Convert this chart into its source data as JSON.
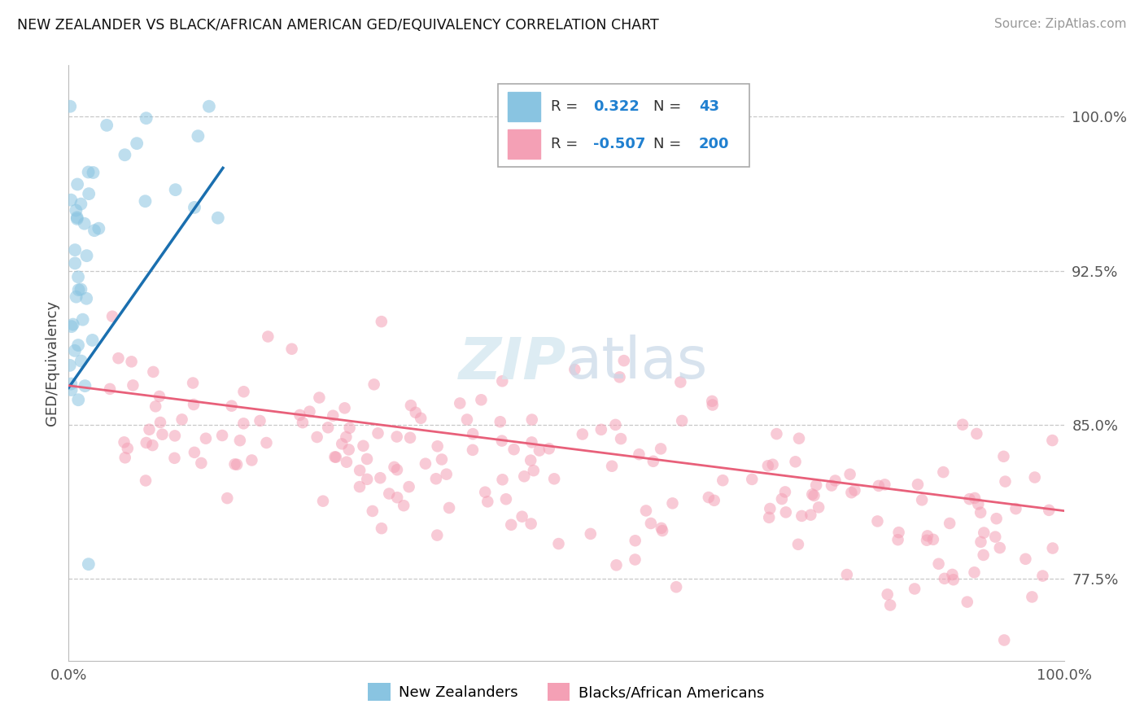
{
  "title": "NEW ZEALANDER VS BLACK/AFRICAN AMERICAN GED/EQUIVALENCY CORRELATION CHART",
  "source": "Source: ZipAtlas.com",
  "ylabel": "GED/Equivalency",
  "legend_entry1": "New Zealanders",
  "legend_entry2": "Blacks/African Americans",
  "r1": 0.322,
  "n1": 43,
  "r2": -0.507,
  "n2": 200,
  "color_blue": "#89c4e1",
  "color_pink": "#f4a0b5",
  "color_blue_line": "#1a6faf",
  "color_pink_line": "#e8607a",
  "xlim": [
    0.0,
    1.0
  ],
  "ylim": [
    0.735,
    1.025
  ],
  "yticks": [
    0.775,
    0.85,
    0.925,
    1.0
  ],
  "ytick_labels": [
    "77.5%",
    "85.0%",
    "92.5%",
    "100.0%"
  ],
  "xtick_labels": [
    "0.0%",
    "100.0%"
  ],
  "xticks": [
    0.0,
    1.0
  ],
  "watermark": "ZIPatlas"
}
